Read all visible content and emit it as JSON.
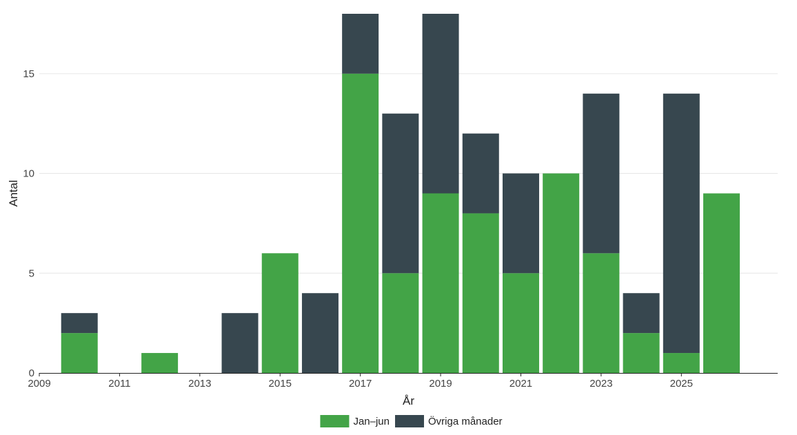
{
  "chart_data": {
    "type": "bar",
    "stacked": true,
    "xlabel": "År",
    "ylabel": "Antal",
    "x": [
      2010,
      2012,
      2014,
      2015,
      2016,
      2017,
      2018,
      2019,
      2020,
      2021,
      2022,
      2023,
      2024,
      2025,
      2026
    ],
    "series": [
      {
        "name": "Jan–jun",
        "color": "#43a447",
        "values": [
          2,
          1,
          0,
          6,
          0,
          15,
          5,
          9,
          8,
          5,
          10,
          6,
          2,
          1,
          9
        ]
      },
      {
        "name": "Övriga månader",
        "color": "#37474f",
        "values": [
          1,
          0,
          3,
          0,
          4,
          3,
          8,
          9,
          4,
          5,
          0,
          8,
          2,
          13,
          0
        ]
      }
    ],
    "xlim": [
      2009,
      2027.4
    ],
    "ylim": [
      0,
      18
    ],
    "xticks": [
      "2009",
      "2011",
      "2013",
      "2015",
      "2017",
      "2019",
      "2021",
      "2023",
      "2025"
    ],
    "yticks": [
      "0",
      "5",
      "10",
      "15"
    ],
    "grid": "horizontal",
    "legend_position": "bottom"
  }
}
